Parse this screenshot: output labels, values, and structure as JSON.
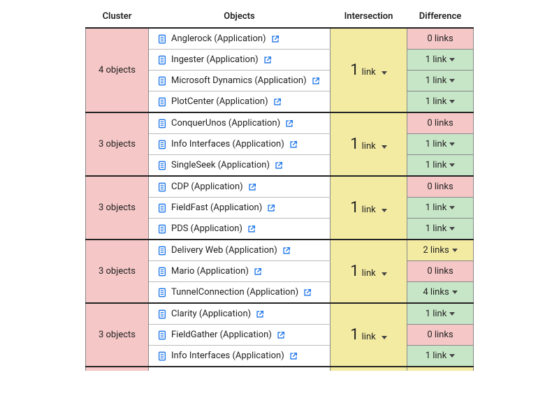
{
  "columns": {
    "cluster": "Cluster",
    "objects": "Objects",
    "intersection": "Intersection",
    "difference": "Difference"
  },
  "colors": {
    "cluster_bg": "#f6c7c7",
    "intersection_bg": "#f4eba3",
    "diff_red": "#f6c7c7",
    "diff_green": "#c7e6c7",
    "diff_yellow": "#f4eba3",
    "link_blue": "#1a73e8",
    "icon_blue": "#1a73e8",
    "border": "#888"
  },
  "link_word_singular": "link",
  "link_word_plural": "link",
  "clusters": [
    {
      "label": "4 objects",
      "intersection_num": "1",
      "intersection_word": "link",
      "has_dropdown": true,
      "objects": [
        {
          "name": "Anglerock (Application)",
          "diff": "0 links",
          "diff_color": "red",
          "diff_dropdown": false
        },
        {
          "name": "Ingester (Application)",
          "diff": "1 link",
          "diff_color": "green",
          "diff_dropdown": true
        },
        {
          "name": "Microsoft Dynamics (Application)",
          "diff": "1 link",
          "diff_color": "green",
          "diff_dropdown": true
        },
        {
          "name": "PlotCenter (Application)",
          "diff": "1 link",
          "diff_color": "green",
          "diff_dropdown": true
        }
      ]
    },
    {
      "label": "3 objects",
      "intersection_num": "1",
      "intersection_word": "link",
      "has_dropdown": true,
      "objects": [
        {
          "name": "ConquerUnos (Application)",
          "diff": "0 links",
          "diff_color": "red",
          "diff_dropdown": false
        },
        {
          "name": "Info Interfaces (Application)",
          "diff": "1 link",
          "diff_color": "green",
          "diff_dropdown": true
        },
        {
          "name": "SingleSeek (Application)",
          "diff": "1 link",
          "diff_color": "green",
          "diff_dropdown": true
        }
      ]
    },
    {
      "label": "3 objects",
      "intersection_num": "1",
      "intersection_word": "link",
      "has_dropdown": true,
      "objects": [
        {
          "name": "CDP (Application)",
          "diff": "0 links",
          "diff_color": "red",
          "diff_dropdown": false
        },
        {
          "name": "FieldFast (Application)",
          "diff": "1 link",
          "diff_color": "green",
          "diff_dropdown": true
        },
        {
          "name": "PDS (Application)",
          "diff": "1 link",
          "diff_color": "green",
          "diff_dropdown": true
        }
      ]
    },
    {
      "label": "3 objects",
      "intersection_num": "1",
      "intersection_word": "link",
      "has_dropdown": true,
      "objects": [
        {
          "name": "Delivery Web (Application)",
          "diff": "2 links",
          "diff_color": "yellow",
          "diff_dropdown": true
        },
        {
          "name": "Mario (Application)",
          "diff": "0 links",
          "diff_color": "red",
          "diff_dropdown": false
        },
        {
          "name": "TunnelConnection (Application)",
          "diff": "4 links",
          "diff_color": "green",
          "diff_dropdown": true
        }
      ]
    },
    {
      "label": "3 objects",
      "intersection_num": "1",
      "intersection_word": "link",
      "has_dropdown": true,
      "objects": [
        {
          "name": "Clarity (Application)",
          "diff": "1 link",
          "diff_color": "green",
          "diff_dropdown": true
        },
        {
          "name": "FieldGather (Application)",
          "diff": "0 links",
          "diff_color": "red",
          "diff_dropdown": false
        },
        {
          "name": "Info Interfaces (Application)",
          "diff": "1 link",
          "diff_color": "green",
          "diff_dropdown": true
        }
      ]
    }
  ],
  "partial_next": true
}
